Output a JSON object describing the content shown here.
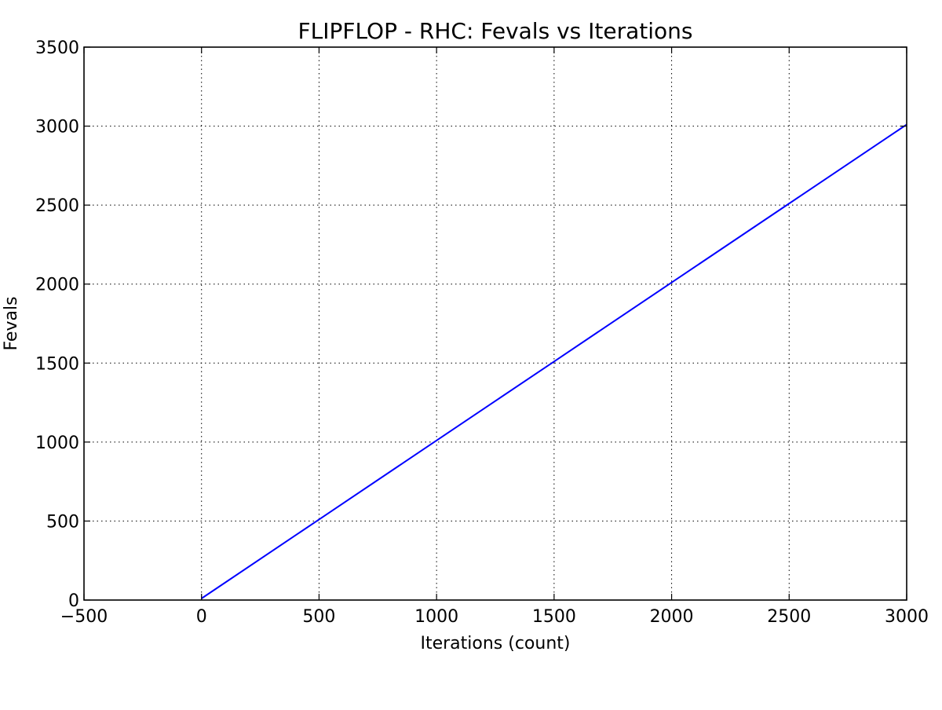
{
  "chart_data": {
    "type": "line",
    "title": "FLIPFLOP - RHC: Fevals vs Iterations",
    "xlabel": "Iterations (count)",
    "ylabel": "Fevals",
    "xlim": [
      -500,
      3000
    ],
    "ylim": [
      0,
      3500
    ],
    "xticks": [
      -500,
      0,
      500,
      1000,
      1500,
      2000,
      2500,
      3000
    ],
    "xtick_labels": [
      "−500",
      "0",
      "500",
      "1000",
      "1500",
      "2000",
      "2500",
      "3000"
    ],
    "yticks": [
      0,
      500,
      1000,
      1500,
      2000,
      2500,
      3000,
      3500
    ],
    "ytick_labels": [
      "0",
      "500",
      "1000",
      "1500",
      "2000",
      "2500",
      "3000",
      "3500"
    ],
    "grid": true,
    "series": [
      {
        "color": "#0000ff",
        "x": [
          0,
          500,
          1000,
          1500,
          2000,
          2500,
          3000
        ],
        "y": [
          10,
          510,
          1010,
          1510,
          2010,
          2510,
          3010
        ]
      }
    ]
  }
}
